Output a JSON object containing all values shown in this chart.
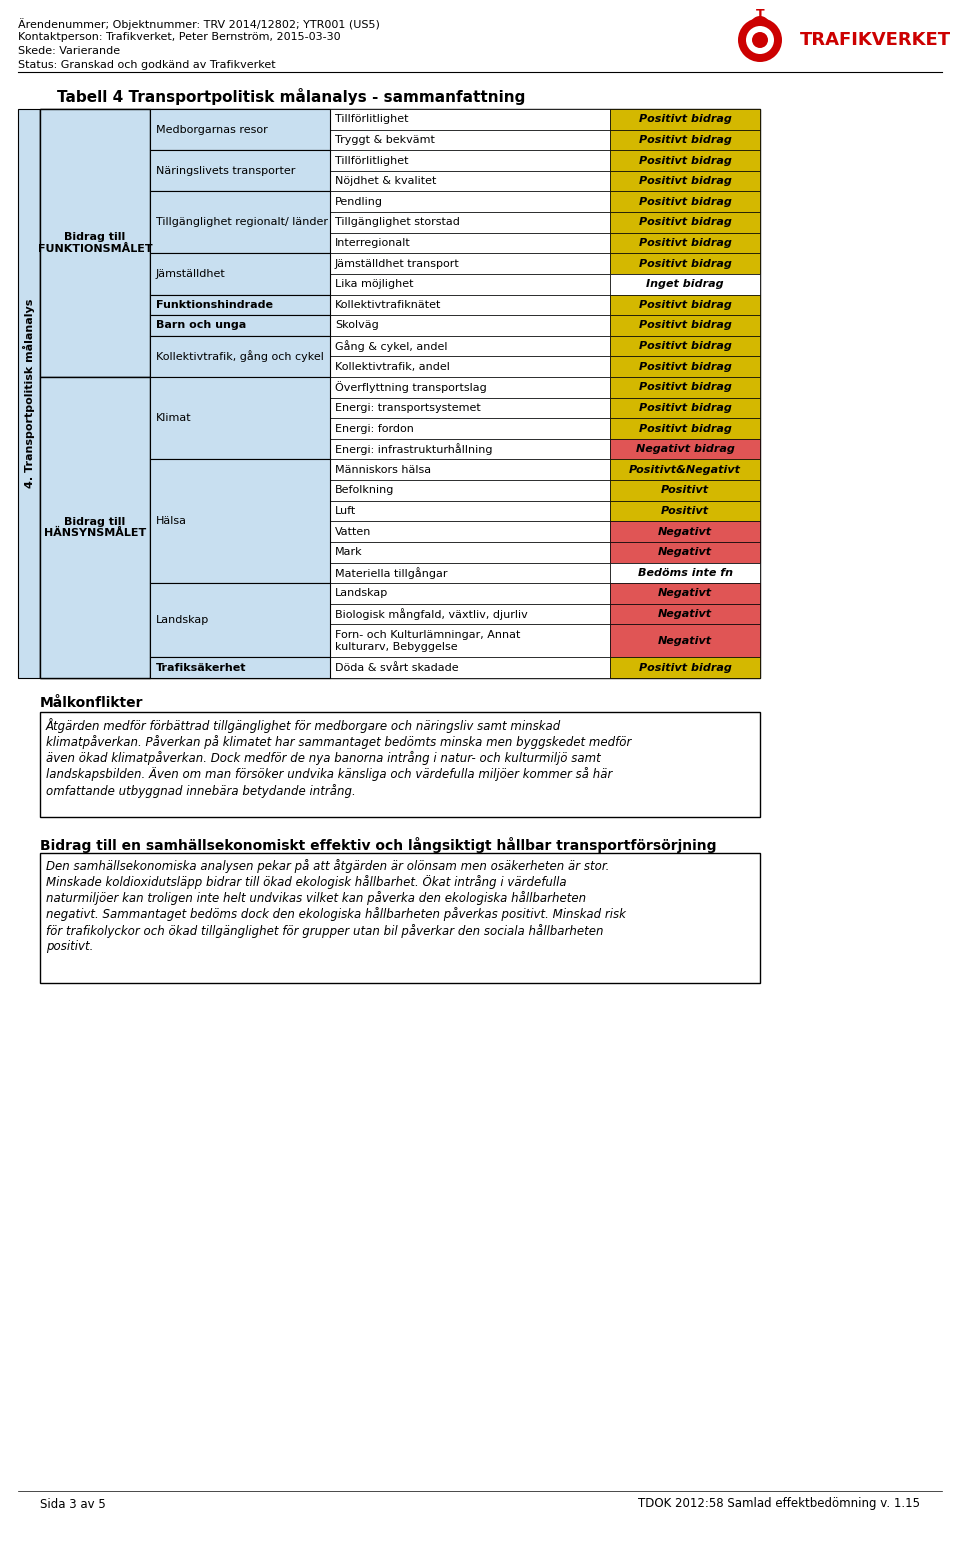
{
  "header_lines": [
    "Ärendenummer; Objektnummer: TRV 2014/12802; YTR001 (US5)",
    "Kontaktperson: Trafikverket, Peter Bernström, 2015-03-30",
    "Skede: Varierande",
    "Status: Granskad och godkänd av Trafikverket"
  ],
  "table_title": "Tabell 4 Transportpolitisk målanalys - sammanfattning",
  "side_label": "4. Transportpolitisk målanalys",
  "rows": [
    {
      "col2": "Medborgarnas resor",
      "col3": "Tillförlitlighet",
      "col4": "Positivt bidrag",
      "col4_color": "#d4b800"
    },
    {
      "col2": "",
      "col3": "Tryggt & bekvämt",
      "col4": "Positivt bidrag",
      "col4_color": "#d4b800"
    },
    {
      "col2": "Näringslivets transporter",
      "col3": "Tillförlitlighet",
      "col4": "Positivt bidrag",
      "col4_color": "#d4b800"
    },
    {
      "col2": "",
      "col3": "Nöjdhet & kvalitet",
      "col4": "Positivt bidrag",
      "col4_color": "#d4b800"
    },
    {
      "col2": "Tillgänglighet regionalt/ länder",
      "col3": "Pendling",
      "col4": "Positivt bidrag",
      "col4_color": "#d4b800"
    },
    {
      "col2": "",
      "col3": "Tillgänglighet storstad",
      "col4": "Positivt bidrag",
      "col4_color": "#d4b800"
    },
    {
      "col2": "",
      "col3": "Interregionalt",
      "col4": "Positivt bidrag",
      "col4_color": "#d4b800"
    },
    {
      "col2": "Jämställdhet",
      "col3": "Jämställdhet transport",
      "col4": "Positivt bidrag",
      "col4_color": "#d4b800"
    },
    {
      "col2": "",
      "col3": "Lika möjlighet",
      "col4": "Inget bidrag",
      "col4_color": "#ffffff"
    },
    {
      "col2": "Funktionshindrade",
      "col3": "Kollektivtrafiknätet",
      "col4": "Positivt bidrag",
      "col4_color": "#d4b800"
    },
    {
      "col2": "Barn och unga",
      "col3": "Skolväg",
      "col4": "Positivt bidrag",
      "col4_color": "#d4b800"
    },
    {
      "col2": "Kollektivtrafik, gång och cykel",
      "col3": "Gång & cykel, andel",
      "col4": "Positivt bidrag",
      "col4_color": "#d4b800"
    },
    {
      "col2": "",
      "col3": "Kollektivtrafik, andel",
      "col4": "Positivt bidrag",
      "col4_color": "#d4b800"
    },
    {
      "col2": "Klimat",
      "col3": "Överflyttning transportslag",
      "col4": "Positivt bidrag",
      "col4_color": "#d4b800"
    },
    {
      "col2": "",
      "col3": "Energi: transportsystemet",
      "col4": "Positivt bidrag",
      "col4_color": "#d4b800"
    },
    {
      "col2": "",
      "col3": "Energi: fordon",
      "col4": "Positivt bidrag",
      "col4_color": "#d4b800"
    },
    {
      "col2": "",
      "col3": "Energi: infrastrukturhållning",
      "col4": "Negativt bidrag",
      "col4_color": "#e05555"
    },
    {
      "col2": "Hälsa",
      "col3": "Människors hälsa",
      "col4": "Positivt&Negativt",
      "col4_color": "#d4b800"
    },
    {
      "col2": "",
      "col3": "Befolkning",
      "col4": "Positivt",
      "col4_color": "#d4b800"
    },
    {
      "col2": "",
      "col3": "Luft",
      "col4": "Positivt",
      "col4_color": "#d4b800"
    },
    {
      "col2": "",
      "col3": "Vatten",
      "col4": "Negativt",
      "col4_color": "#e05555"
    },
    {
      "col2": "",
      "col3": "Mark",
      "col4": "Negativt",
      "col4_color": "#e05555"
    },
    {
      "col2": "",
      "col3": "Materiella tillgångar",
      "col4": "Bedöms inte fn",
      "col4_color": "#ffffff"
    },
    {
      "col2": "Landskap",
      "col3": "Landskap",
      "col4": "Negativt",
      "col4_color": "#e05555"
    },
    {
      "col2": "",
      "col3": "Biologisk mångfald, växtliv, djurliv",
      "col4": "Negativt",
      "col4_color": "#e05555"
    },
    {
      "col2": "",
      "col3": "Forn- och Kulturlämningar, Annat\nkulturarv, Bebyggelse",
      "col4": "Negativt",
      "col4_color": "#e05555"
    },
    {
      "col2": "Trafiksäkerhet",
      "col3": "Döda & svårt skadade",
      "col4": "Positivt bidrag",
      "col4_color": "#d4b800"
    }
  ],
  "col2_groups": [
    {
      "label": "Medborgarnas resor",
      "rows": [
        0,
        1
      ],
      "bold": false
    },
    {
      "label": "Näringslivets transporter",
      "rows": [
        2,
        3
      ],
      "bold": false
    },
    {
      "label": "Tillgänglighet regionalt/ länder",
      "rows": [
        4,
        5,
        6
      ],
      "bold": false
    },
    {
      "label": "Jämställdhet",
      "rows": [
        7,
        8
      ],
      "bold": false
    },
    {
      "label": "Funktionshindrade",
      "rows": [
        9
      ],
      "bold": true
    },
    {
      "label": "Barn och unga",
      "rows": [
        10
      ],
      "bold": true
    },
    {
      "label": "Kollektivtrafik, gång och cykel",
      "rows": [
        11,
        12
      ],
      "bold": false
    },
    {
      "label": "Klimat",
      "rows": [
        13,
        14,
        15,
        16
      ],
      "bold": false
    },
    {
      "label": "Hälsa",
      "rows": [
        17,
        18,
        19,
        20,
        21,
        22
      ],
      "bold": false
    },
    {
      "label": "Landskap",
      "rows": [
        23,
        24,
        25
      ],
      "bold": false
    },
    {
      "label": "Trafiksäkerhet",
      "rows": [
        26
      ],
      "bold": true
    }
  ],
  "col1_groups": [
    {
      "label": "Bidrag till\nFUNKTIONSMÅLET",
      "rows": [
        0,
        12
      ]
    },
    {
      "label": "Bidrag till\nHÄNSYNSMÅLET",
      "rows": [
        13,
        26
      ]
    }
  ],
  "målkonflikter_title": "Målkonflikter",
  "målkonflikter_text": "Åtgärden medför förbättrad tillgänglighet för medborgare och näringsliv samt minskad\nklimatpåverkan. Påverkan på klimatet har sammantaget bedömts minska men byggskedet medför\näven ökad klimatpåverkan. Dock medför de nya banorna intrång i natur- och kulturmiljö samt\nlandskapsbilden. Även om man försöker undvika känsliga och värdefulla miljöer kommer så här\nomfattande utbyggnad innebära betydande intrång.",
  "samhall_title": "Bidrag till en samhällsekonomiskt effektiv och långsiktigt hållbar transportförsörjning",
  "samhall_text": "Den samhällsekonomiska analysen pekar på att åtgärden är olönsam men osäkerheten är stor.\nMinskade koldioxidutsläpp bidrar till ökad ekologisk hållbarhet. Ökat intrång i värdefulla\nnaturmiljöer kan troligen inte helt undvikas vilket kan påverka den ekologiska hållbarheten\nnegativt. Sammantaget bedöms dock den ekologiska hållbarheten påverkas positivt. Minskad risk\nför trafikolyckor och ökad tillgänglighet för grupper utan bil påverkar den sociala hållbarheten\npositivt.",
  "footer_left": "Sida 3 av 5",
  "footer_right": "TDOK 2012:58 Samlad effektbedömning v. 1.15",
  "table_bg": "#c8dff0",
  "cell_bg": "#ffffff",
  "border_color": "#000000",
  "side_bar_color": "#c8dff0"
}
